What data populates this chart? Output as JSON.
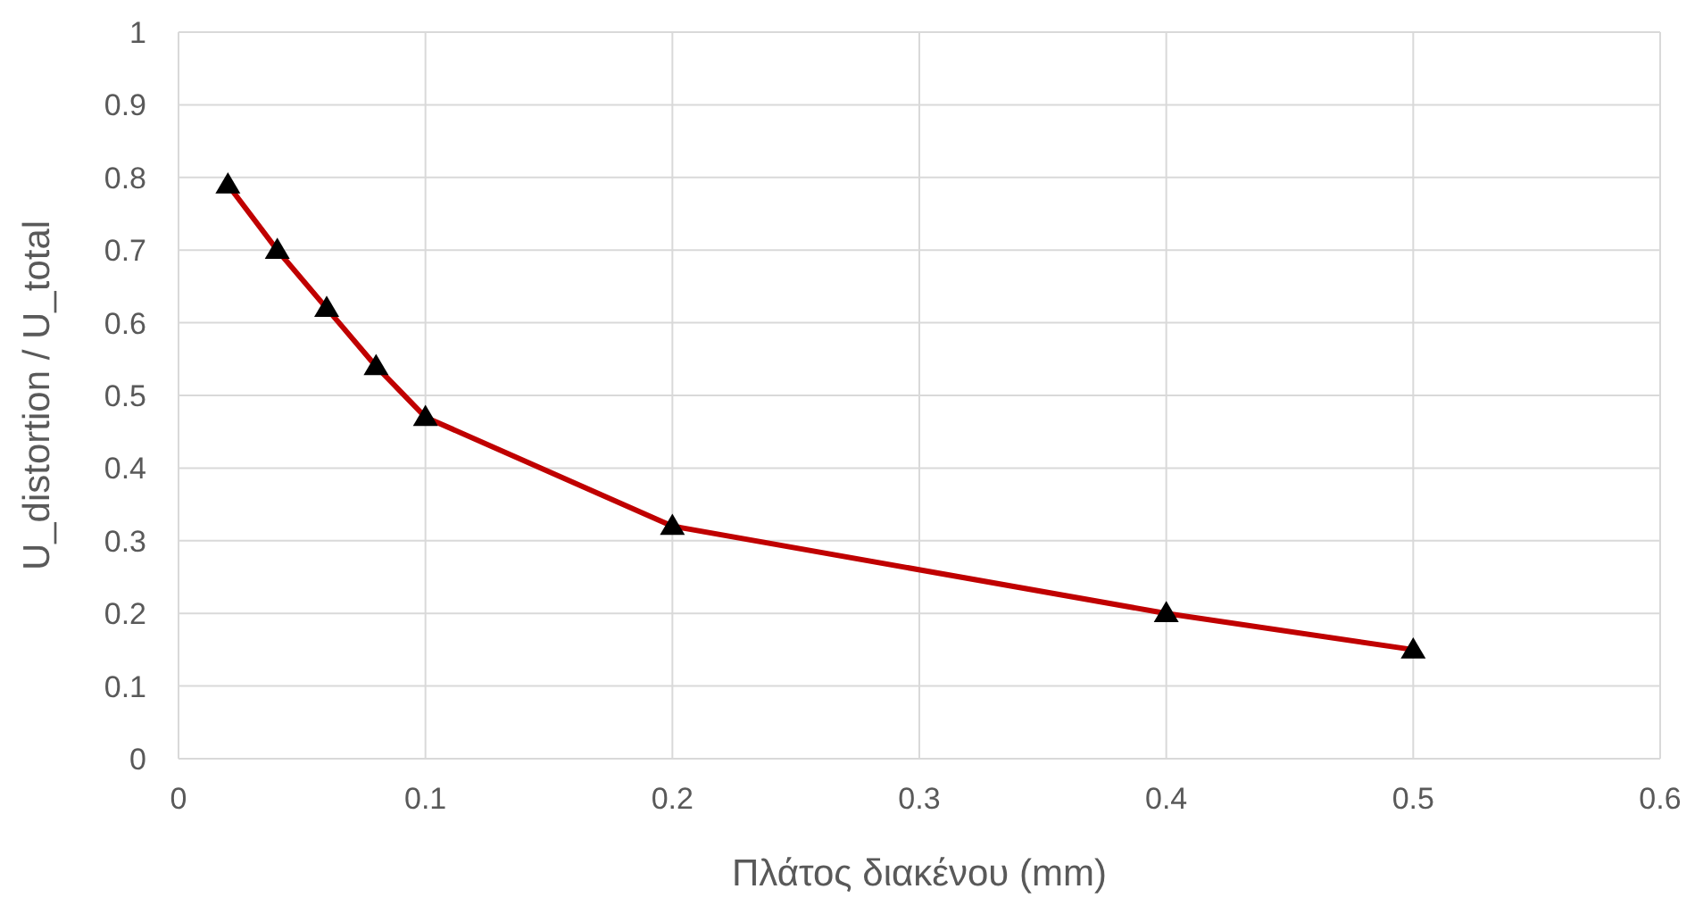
{
  "chart_data": {
    "type": "line",
    "xlabel": "Πλάτος διακένου (mm)",
    "ylabel": "U_distortion / U_total",
    "x": [
      0.02,
      0.04,
      0.06,
      0.08,
      0.1,
      0.2,
      0.4,
      0.5
    ],
    "series": [
      {
        "color": "#c00000",
        "values": [
          0.79,
          0.7,
          0.62,
          0.54,
          0.47,
          0.32,
          0.2,
          0.15
        ]
      }
    ],
    "xlim": [
      0,
      0.6
    ],
    "xticks": [
      0,
      0.1,
      0.2,
      0.3,
      0.4,
      0.5,
      0.6
    ],
    "ylim": [
      0,
      1
    ],
    "yticks": [
      0,
      0.1,
      0.2,
      0.3,
      0.4,
      0.5,
      0.6,
      0.7,
      0.8,
      0.9,
      1
    ],
    "grid": true,
    "legend": false,
    "marker": "triangle",
    "line_style": "solid"
  }
}
